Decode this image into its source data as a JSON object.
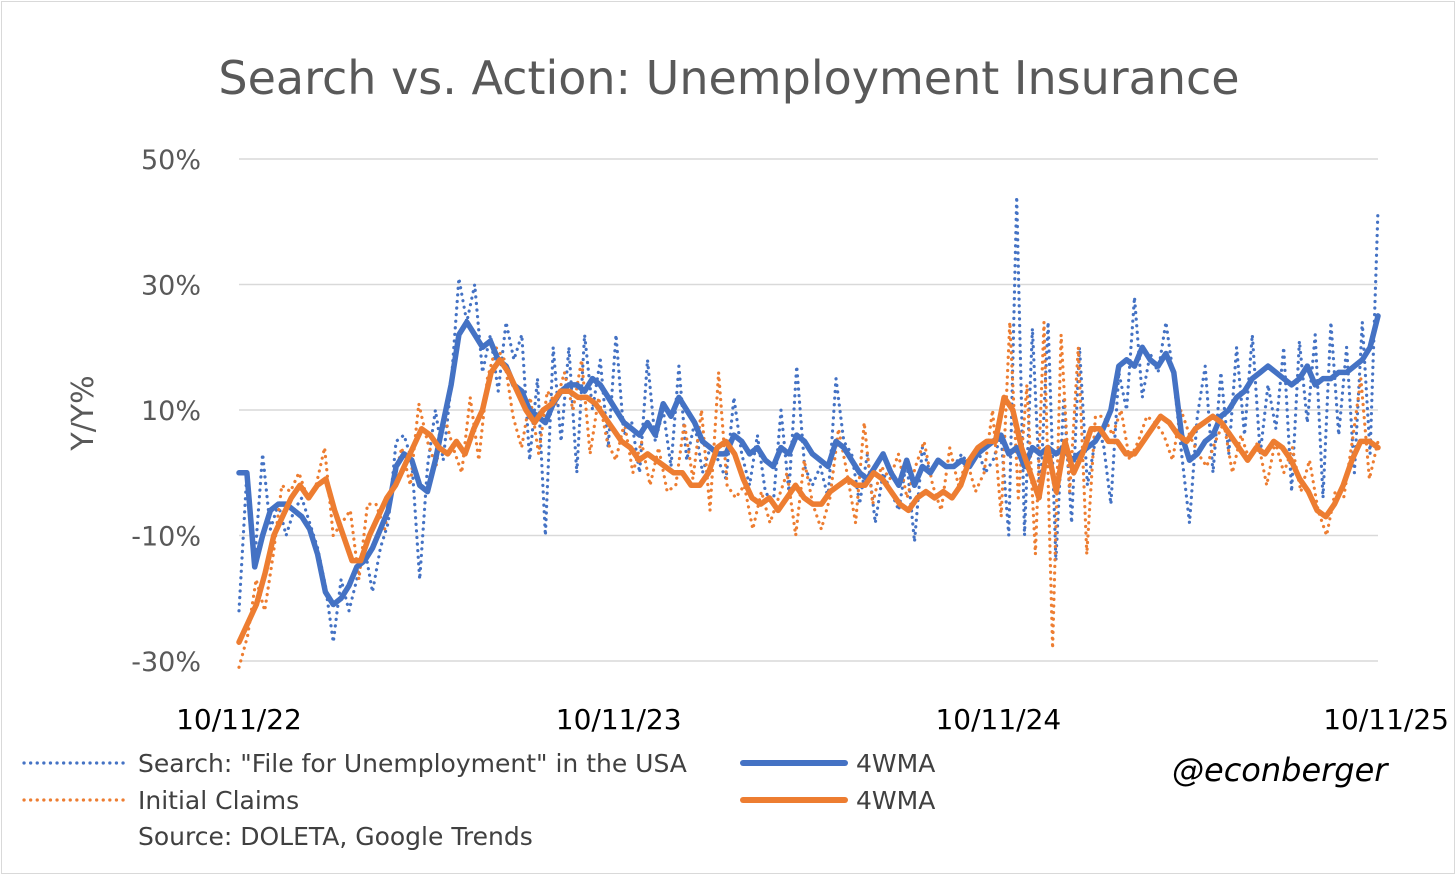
{
  "chart_data": {
    "type": "line",
    "title": "Search vs. Action: Unemployment Insurance",
    "ylabel": "Y/Y%",
    "xlabel": "",
    "ylim": [
      -30,
      50
    ],
    "ytick_values": [
      -30,
      -10,
      10,
      30,
      50
    ],
    "yticks": [
      "-30%",
      "-10%",
      "10%",
      "30%",
      "50%"
    ],
    "xticks": [
      "10/11/22",
      "10/11/23",
      "10/11/24",
      "10/11/25"
    ],
    "x_range_weeks": [
      0,
      156
    ],
    "gridlines": true,
    "colors": {
      "search": "#4472C4",
      "claims": "#ED7D31"
    },
    "series": [
      {
        "name": "Search: \"File for Unemployment\" in the USA",
        "style": "dotted",
        "color": "#4472C4",
        "values": [
          -22,
          0,
          -14,
          3,
          -9,
          -5,
          -10,
          -6,
          -4,
          -8,
          -12,
          -18,
          -27,
          -17,
          -22,
          -17,
          -12,
          -19,
          -12,
          -8,
          5,
          6,
          2,
          -17,
          1,
          10,
          2,
          14,
          31,
          24,
          30,
          16,
          22,
          13,
          24,
          18,
          22,
          2,
          15,
          -10,
          20,
          5,
          20,
          0,
          22,
          10,
          18,
          4,
          22,
          6,
          8,
          0,
          18,
          5,
          10,
          1,
          17,
          2,
          8,
          0,
          4,
          2,
          -1,
          12,
          3,
          -2,
          6,
          -3,
          -5,
          10,
          -3,
          17,
          1,
          -2,
          1,
          -4,
          15,
          5,
          3,
          -5,
          3,
          -8,
          0,
          -3,
          -6,
          2,
          -11,
          4,
          0,
          2,
          1,
          1,
          3,
          1,
          4,
          0,
          2,
          6,
          -10,
          44,
          -10,
          23,
          -4,
          24,
          -14,
          12,
          -8,
          20,
          -2,
          5,
          5,
          -5,
          16,
          10,
          28,
          12,
          19,
          16,
          24,
          15,
          3,
          -8,
          9,
          17,
          0,
          16,
          3,
          20,
          6,
          22,
          3,
          14,
          7,
          20,
          -3,
          21,
          8,
          22,
          -4,
          24,
          6,
          20,
          0,
          24,
          3,
          42
        ]
      },
      {
        "name": "4WMA",
        "style": "solid",
        "color": "#4472C4",
        "values": [
          0,
          0,
          -15,
          -10,
          -6,
          -5,
          -5,
          -6,
          -7,
          -9,
          -13,
          -19,
          -21,
          -20,
          -18,
          -15,
          -14,
          -12,
          -9,
          -6,
          1,
          3,
          2,
          -2,
          -3,
          2,
          8,
          14,
          22,
          24,
          22,
          20,
          21,
          18,
          17,
          14,
          13,
          10,
          9,
          8,
          11,
          13,
          14,
          14,
          13,
          15,
          14,
          12,
          10,
          8,
          7,
          6,
          8,
          6,
          11,
          9,
          12,
          10,
          8,
          5,
          4,
          3,
          3,
          6,
          5,
          3,
          4,
          2,
          1,
          4,
          3,
          6,
          5,
          3,
          2,
          1,
          5,
          4,
          2,
          0,
          -1,
          1,
          3,
          0,
          -2,
          2,
          -2,
          1,
          0,
          2,
          1,
          1,
          2,
          1,
          3,
          4,
          5,
          6,
          3,
          4,
          1,
          4,
          3,
          4,
          3,
          4,
          2,
          3,
          4,
          5,
          7,
          10,
          17,
          18,
          17,
          20,
          18,
          17,
          19,
          16,
          6,
          2,
          3,
          5,
          6,
          9,
          10,
          12,
          13,
          15,
          16,
          17,
          16,
          15,
          14,
          15,
          17,
          14,
          15,
          15,
          16,
          16,
          17,
          18,
          20,
          25
        ]
      },
      {
        "name": "Initial Claims",
        "style": "dotted",
        "color": "#ED7D31",
        "values": [
          -31,
          -26,
          -17,
          -22,
          -13,
          -2,
          -3,
          0,
          -4,
          -2,
          4,
          -10,
          -8,
          -6,
          -17,
          -5,
          -5,
          -9,
          -2,
          4,
          -2,
          11,
          5,
          1,
          9,
          4,
          0,
          12,
          2,
          15,
          20,
          18,
          9,
          4,
          12,
          3,
          13,
          11,
          16,
          10,
          18,
          3,
          12,
          5,
          2,
          8,
          0,
          5,
          -2,
          4,
          -3,
          -2,
          8,
          -1,
          10,
          -6,
          16,
          -2,
          -4,
          -2,
          -9,
          -3,
          -8,
          -4,
          0,
          -10,
          2,
          -5,
          -9,
          -4,
          7,
          0,
          -8,
          8,
          -5,
          1,
          -1,
          3,
          -4,
          1,
          5,
          -2,
          -6,
          4,
          -2,
          2,
          -3,
          0,
          10,
          -7,
          24,
          -4,
          14,
          -13,
          24,
          -28,
          22,
          -3,
          20,
          -13,
          9,
          9,
          6,
          10,
          2,
          5,
          9,
          8,
          6,
          2,
          10,
          6,
          3,
          1,
          5,
          8,
          0,
          6,
          2,
          5,
          -2,
          5,
          0,
          4,
          -3,
          2,
          -6,
          -10,
          -3,
          -4,
          5,
          15,
          -1,
          5
        ]
      },
      {
        "name": "4WMA",
        "style": "solid",
        "color": "#ED7D31",
        "values": [
          -27,
          -24,
          -21,
          -16,
          -10,
          -7,
          -4,
          -2,
          -4,
          -2,
          -1,
          -6,
          -10,
          -14,
          -14,
          -10,
          -7,
          -4,
          -2,
          1,
          4,
          7,
          6,
          4,
          3,
          5,
          3,
          7,
          10,
          16,
          18,
          16,
          13,
          10,
          8,
          10,
          11,
          13,
          13,
          12,
          12,
          11,
          9,
          7,
          5,
          4,
          2,
          3,
          2,
          1,
          0,
          0,
          -2,
          -2,
          0,
          4,
          5,
          3,
          -1,
          -4,
          -5,
          -4,
          -6,
          -4,
          -2,
          -4,
          -5,
          -5,
          -3,
          -2,
          -1,
          -2,
          -2,
          0,
          -1,
          -3,
          -5,
          -6,
          -4,
          -3,
          -4,
          -3,
          -4,
          -2,
          2,
          4,
          5,
          5,
          12,
          10,
          4,
          0,
          -4,
          4,
          -3,
          5,
          0,
          3,
          7,
          7,
          5,
          5,
          3,
          3,
          5,
          7,
          9,
          8,
          6,
          5,
          7,
          8,
          9,
          8,
          6,
          4,
          2,
          4,
          3,
          5,
          4,
          2,
          -1,
          -3,
          -6,
          -7,
          -5,
          -2,
          2,
          5,
          5,
          4
        ]
      }
    ]
  },
  "legend": [
    {
      "label": "Search: \"File for Unemployment\" in the USA",
      "style": "dotted",
      "color": "#4472C4"
    },
    {
      "label": "4WMA",
      "style": "solid",
      "color": "#4472C4"
    },
    {
      "label": "Initial Claims",
      "style": "dotted",
      "color": "#ED7D31"
    },
    {
      "label": "4WMA",
      "style": "solid",
      "color": "#ED7D31"
    }
  ],
  "source": "Source: DOLETA, Google Trends",
  "credit": "@econberger"
}
